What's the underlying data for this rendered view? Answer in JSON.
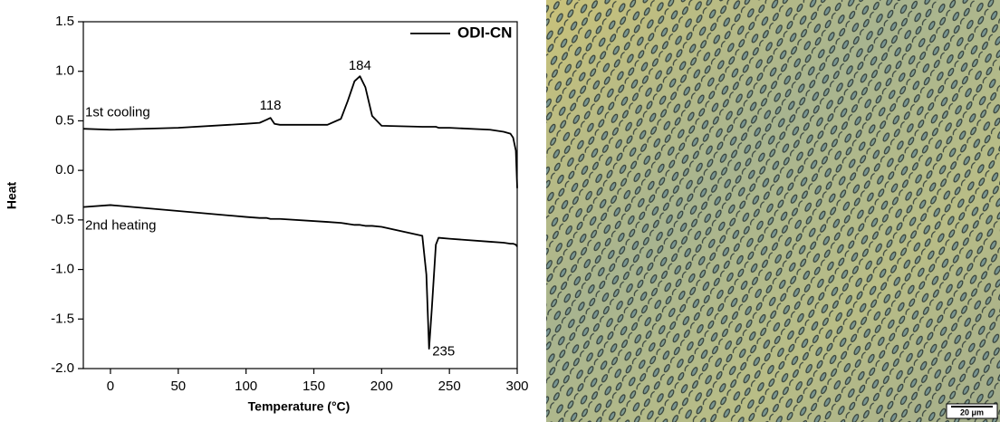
{
  "chart_data": {
    "type": "line",
    "xlabel": "Temperature (°C)",
    "ylabel": "Heat",
    "xlim": [
      -20,
      300
    ],
    "xticks": [
      0,
      50,
      100,
      150,
      200,
      250,
      300
    ],
    "ylim": [
      -2.0,
      1.5
    ],
    "yticks": [
      {
        "value": -2.0,
        "label": "-2.0"
      },
      -1.5,
      {
        "value": -1.0,
        "label": "-1.0"
      },
      -0.5,
      {
        "value": 0.0,
        "label": "0.0"
      },
      0.5,
      {
        "value": 1.0,
        "label": "1.0"
      },
      1.5
    ],
    "legend": "top-right",
    "legend_label": "ODI-CN",
    "annotations": [
      "1st cooling",
      "2nd heating"
    ],
    "peak_labels": [
      118,
      184,
      235
    ],
    "x": [
      -20,
      0,
      50,
      100,
      110,
      115,
      118,
      121,
      125,
      160,
      170,
      175,
      180,
      184,
      188,
      193,
      200,
      230,
      233,
      235,
      237,
      240,
      242,
      250,
      280,
      290,
      295,
      297,
      299,
      300
    ],
    "series": [
      {
        "color": "#000000",
        "values": [
          0.42,
          0.41,
          0.43,
          0.47,
          0.48,
          0.51,
          0.53,
          0.47,
          0.46,
          0.46,
          0.52,
          0.7,
          0.9,
          0.95,
          0.84,
          0.55,
          0.45,
          0.44,
          0.44,
          0.44,
          0.44,
          0.44,
          0.43,
          0.43,
          0.41,
          0.39,
          0.37,
          0.33,
          0.2,
          -0.18
        ]
      },
      {
        "color": "#000000",
        "values": [
          -0.37,
          -0.35,
          -0.41,
          -0.47,
          -0.48,
          -0.48,
          -0.49,
          -0.49,
          -0.49,
          -0.52,
          -0.53,
          -0.54,
          -0.55,
          -0.55,
          -0.56,
          -0.56,
          -0.57,
          -0.66,
          -1.05,
          -1.8,
          -1.4,
          -0.75,
          -0.68,
          -0.69,
          -0.72,
          -0.73,
          -0.74,
          -0.74,
          -0.75,
          -0.77
        ]
      }
    ]
  },
  "micrograph": {
    "scale_bar": "20 μm"
  }
}
